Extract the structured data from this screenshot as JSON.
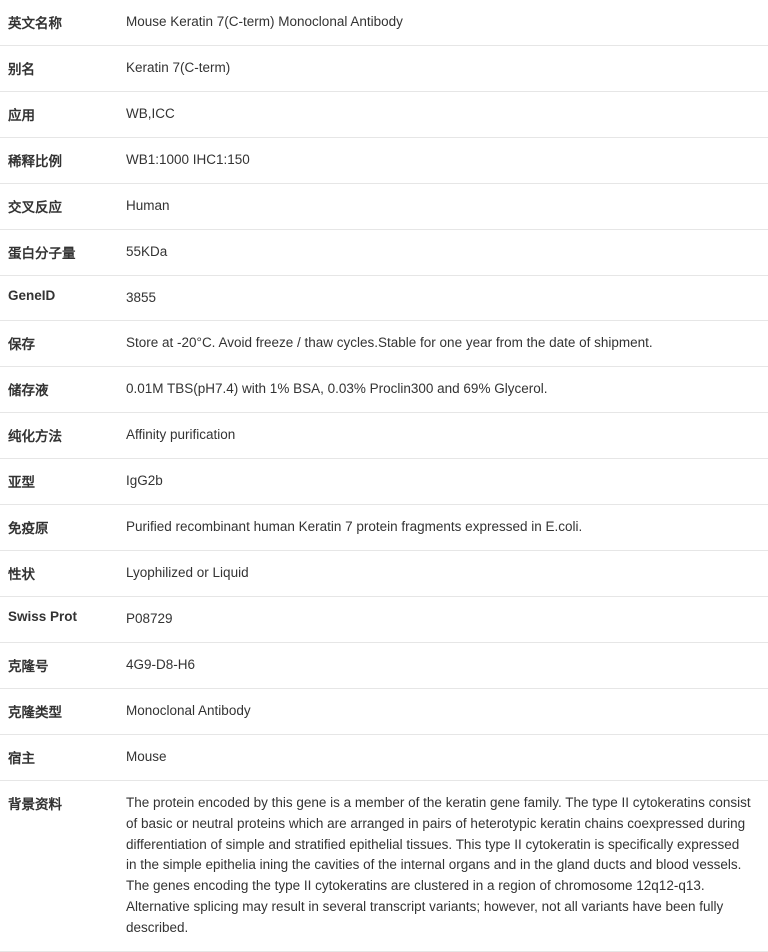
{
  "rows": [
    {
      "label": "英文名称",
      "value": "Mouse Keratin 7(C-term) Monoclonal Antibody"
    },
    {
      "label": "别名",
      "value": "Keratin 7(C-term)"
    },
    {
      "label": "应用",
      "value": "WB,ICC"
    },
    {
      "label": "稀释比例",
      "value": "WB1:1000 IHC1:150"
    },
    {
      "label": "交叉反应",
      "value": "Human"
    },
    {
      "label": "蛋白分子量",
      "value": "55KDa"
    },
    {
      "label": "GeneID",
      "value": "3855"
    },
    {
      "label": "保存",
      "value": "Store at -20°C. Avoid freeze / thaw cycles.Stable for one year from the date of shipment."
    },
    {
      "label": "储存液",
      "value": "0.01M TBS(pH7.4) with 1% BSA, 0.03% Proclin300 and 69% Glycerol."
    },
    {
      "label": "纯化方法",
      "value": "Affinity purification"
    },
    {
      "label": "亚型",
      "value": "IgG2b"
    },
    {
      "label": "免疫原",
      "value": "Purified recombinant human Keratin 7 protein fragments expressed in E.coli."
    },
    {
      "label": "性状",
      "value": "Lyophilized or Liquid"
    },
    {
      "label": "Swiss Prot",
      "value": "P08729"
    },
    {
      "label": "克隆号",
      "value": "4G9-D8-H6"
    },
    {
      "label": "克隆类型",
      "value": "Monoclonal Antibody"
    },
    {
      "label": "宿主",
      "value": "Mouse"
    },
    {
      "label": "背景资料",
      "value": "The protein encoded by this gene is a member of the keratin gene family. The type II cytokeratins consist of basic or neutral proteins which are arranged in pairs of heterotypic keratin chains coexpressed during differentiation of simple and stratified epithelial tissues. This type II cytokeratin is specifically expressed in the simple epithelia ining the cavities of the internal organs and in the gland ducts and blood vessels. The genes encoding the type II cytokeratins are clustered in a region of chromosome 12q12-q13. Alternative splicing may result in several transcript variants; however, not all variants have been fully described."
    }
  ]
}
